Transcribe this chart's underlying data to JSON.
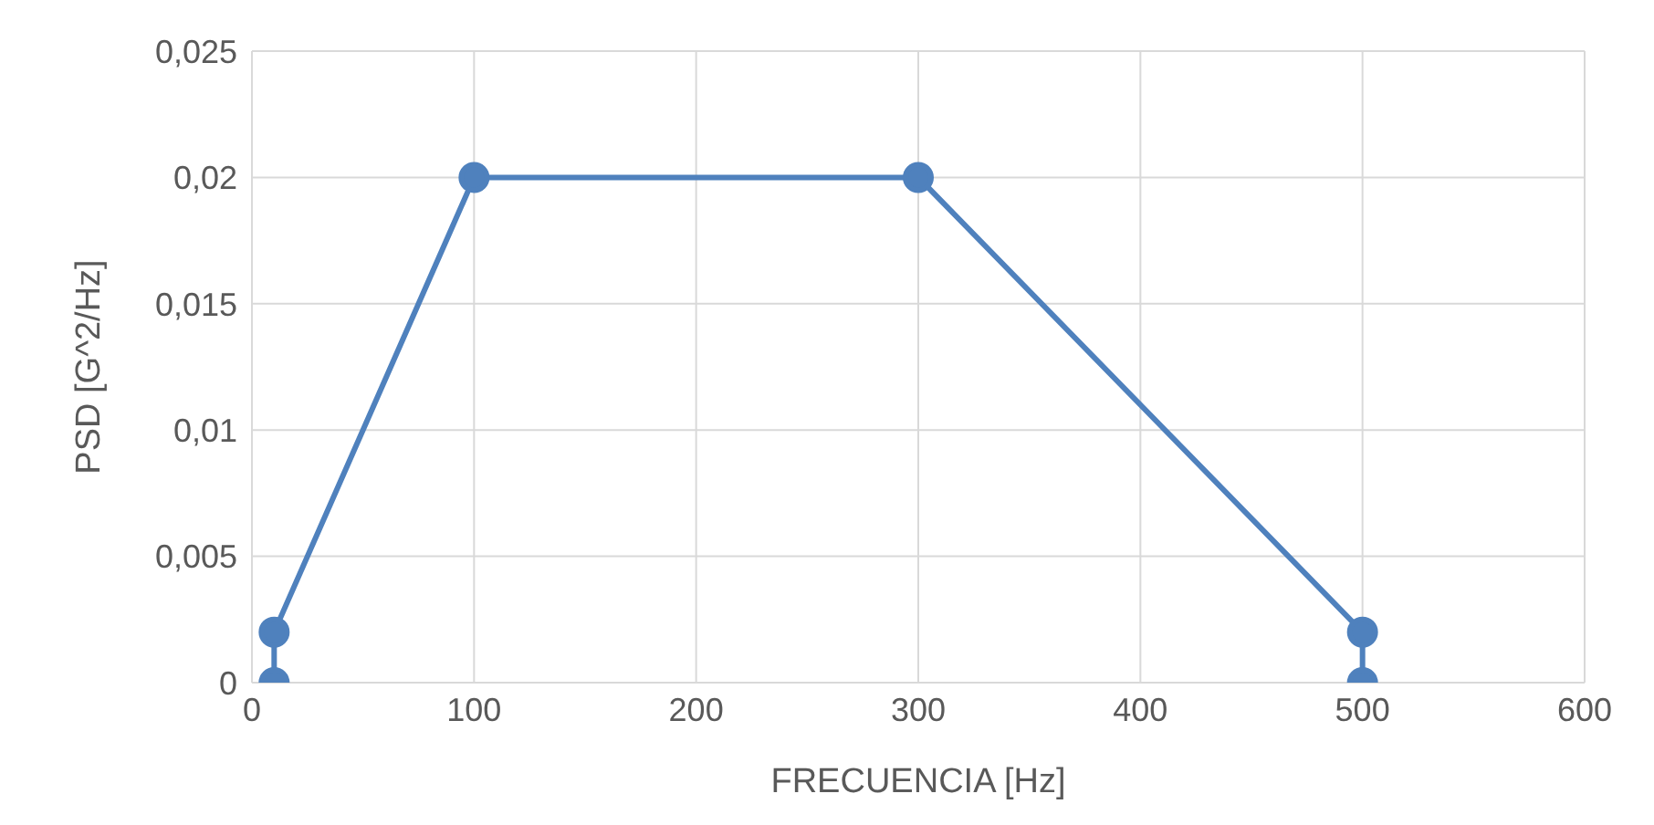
{
  "chart_data": {
    "type": "line",
    "xlabel": "FRECUENCIA [Hz]",
    "ylabel": "PSD [G^2/Hz]",
    "x": [
      10,
      10,
      100,
      300,
      500,
      500
    ],
    "series": [
      {
        "color": "#4f81bd",
        "values": [
          0,
          0.002,
          0.02,
          0.02,
          0.002,
          0
        ]
      }
    ],
    "xlim": [
      0,
      600
    ],
    "xticks": [
      0,
      100,
      200,
      300,
      400,
      500,
      600
    ],
    "ylim": [
      0,
      0.025
    ],
    "yticks": [
      0,
      {
        "value": 0.005,
        "label": "0,005"
      },
      {
        "value": 0.01,
        "label": "0,01"
      },
      {
        "value": 0.015,
        "label": "0,015"
      },
      {
        "value": 0.02,
        "label": "0,02"
      },
      {
        "value": 0.025,
        "label": "0,025"
      }
    ],
    "grid": true,
    "marker": "circle",
    "line_style": "solid",
    "legend": false
  }
}
